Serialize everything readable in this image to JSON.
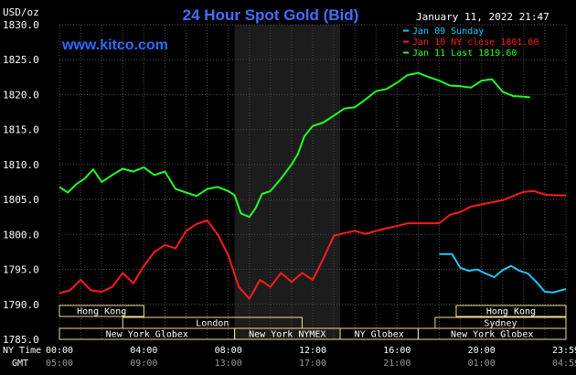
{
  "header": {
    "unit": "USD/oz",
    "title": "24 Hour Spot Gold (Bid)",
    "timestamp": "January 11, 2022 21:47",
    "site": "www.kitco.com"
  },
  "colors": {
    "background": "#000000",
    "grid": "#4a4a4a",
    "title": "#4a6bff",
    "site": "#2e6cff",
    "session_band": "#1c1c1c",
    "market_box": "#f2dc8c",
    "series_sunday": "#19c8ff",
    "series_close": "#ff1a1a",
    "series_last": "#22ff22"
  },
  "chart_data": {
    "type": "line",
    "title": "24 Hour Spot Gold (Bid)",
    "ylabel": "USD/oz",
    "ylim": [
      1785,
      1830
    ],
    "yticks": [
      "1830.0",
      "1825.0",
      "1820.0",
      "1815.0",
      "1810.0",
      "1805.0",
      "1800.0",
      "1795.0",
      "1790.0",
      "1785.0"
    ],
    "xlim": [
      0,
      24
    ],
    "xtick_hours": [
      0,
      4,
      8,
      12,
      16,
      20,
      24
    ],
    "xticks_ny": [
      "00:00",
      "04:00",
      "08:00",
      "12:00",
      "16:00",
      "20:00",
      "23:59"
    ],
    "xticks_gmt": [
      "05:00",
      "09:00",
      "13:00",
      "17:00",
      "21:00",
      "01:00",
      "04:59"
    ],
    "axis_row_labels": [
      "NY Time",
      "GMT"
    ],
    "grid": true,
    "legend_position": "top-right",
    "shaded_session_hours": [
      8.3,
      13.3
    ],
    "series": [
      {
        "name": "Jan 09 Sunday",
        "color": "#19c8ff",
        "x": [
          18.0,
          18.6,
          19.0,
          19.4,
          19.8,
          20.2,
          20.6,
          21.0,
          21.4,
          21.8,
          22.2,
          22.6,
          23.0,
          23.4,
          24.0
        ],
        "y": [
          1797.2,
          1797.2,
          1795.2,
          1794.8,
          1795.0,
          1794.4,
          1793.9,
          1794.9,
          1795.5,
          1794.8,
          1794.4,
          1793.2,
          1791.8,
          1791.7,
          1792.2
        ]
      },
      {
        "name": "Jan 10 NY close 1801.60",
        "color": "#ff1a1a",
        "x": [
          0,
          0.5,
          1.0,
          1.5,
          2.0,
          2.5,
          3.0,
          3.5,
          4.0,
          4.5,
          5.0,
          5.5,
          6.0,
          6.5,
          7.0,
          7.5,
          8.0,
          8.5,
          9.0,
          9.5,
          10.0,
          10.5,
          11.0,
          11.5,
          12.0,
          12.5,
          13.0,
          13.5,
          14.0,
          14.5,
          15.0,
          15.5,
          16.0,
          16.5,
          17.0,
          17.5,
          18.0,
          18.5,
          19.0,
          19.5,
          20.0,
          20.5,
          21.0,
          21.5,
          22.0,
          22.5,
          23.0,
          23.5,
          24.0
        ],
        "y": [
          1791.6,
          1792.0,
          1793.5,
          1792.0,
          1791.8,
          1792.5,
          1794.5,
          1793.0,
          1795.5,
          1797.5,
          1798.5,
          1798.0,
          1800.5,
          1801.5,
          1802.0,
          1800.0,
          1797.0,
          1792.5,
          1790.8,
          1793.5,
          1792.5,
          1794.5,
          1793.2,
          1794.5,
          1793.5,
          1796.5,
          1799.8,
          1800.2,
          1800.5,
          1800.1,
          1800.5,
          1800.9,
          1801.2,
          1801.6,
          1801.6,
          1801.6,
          1801.6,
          1802.8,
          1803.2,
          1804.0,
          1804.3,
          1804.6,
          1804.9,
          1805.5,
          1806.1,
          1806.2,
          1805.7,
          1805.6,
          1805.6
        ]
      },
      {
        "name": "Jan 11 Last 1819.60",
        "color": "#22ff22",
        "x": [
          0,
          0.4,
          0.8,
          1.2,
          1.6,
          2.0,
          2.5,
          3.0,
          3.5,
          4.0,
          4.5,
          5.0,
          5.5,
          6.0,
          6.5,
          7.0,
          7.5,
          8.0,
          8.3,
          8.6,
          9.0,
          9.3,
          9.6,
          10.0,
          10.5,
          11.0,
          11.3,
          11.6,
          12.0,
          12.5,
          13.0,
          13.5,
          14.0,
          14.5,
          15.0,
          15.5,
          16.0,
          16.5,
          17.0,
          17.5,
          18.0,
          18.5,
          19.0,
          19.5,
          20.0,
          20.5,
          21.0,
          21.5,
          22.0,
          22.3
        ],
        "y": [
          1806.8,
          1806.0,
          1807.2,
          1808.0,
          1809.3,
          1807.5,
          1808.5,
          1809.4,
          1809.0,
          1809.6,
          1808.5,
          1809.0,
          1806.5,
          1806.0,
          1805.5,
          1806.5,
          1806.8,
          1806.2,
          1805.6,
          1803.0,
          1802.5,
          1803.8,
          1805.8,
          1806.2,
          1808.0,
          1810.0,
          1811.5,
          1814.0,
          1815.5,
          1816.0,
          1817.0,
          1818.0,
          1818.2,
          1819.3,
          1820.5,
          1820.8,
          1821.7,
          1822.8,
          1823.1,
          1822.5,
          1822.0,
          1821.3,
          1821.2,
          1821.0,
          1822.0,
          1822.2,
          1820.4,
          1819.8,
          1819.7,
          1819.6
        ]
      }
    ]
  },
  "market_sessions": [
    {
      "label": "Hong Kong",
      "row": 0,
      "start": 0,
      "end": 4.0
    },
    {
      "label": "Hong Kong",
      "row": 0,
      "start": 18.8,
      "end": 24
    },
    {
      "label": "London",
      "row": 1,
      "start": 3.0,
      "end": 11.5
    },
    {
      "label": "Sydney",
      "row": 1,
      "start": 17.8,
      "end": 24
    },
    {
      "label": "New York Globex",
      "row": 2,
      "start": 0,
      "end": 8.3
    },
    {
      "label": "New York NYMEX",
      "row": 2,
      "start": 8.3,
      "end": 13.3
    },
    {
      "label": "NY Globex",
      "row": 2,
      "start": 13.3,
      "end": 17.0
    },
    {
      "label": "New York Globex",
      "row": 2,
      "start": 17.0,
      "end": 24
    }
  ]
}
